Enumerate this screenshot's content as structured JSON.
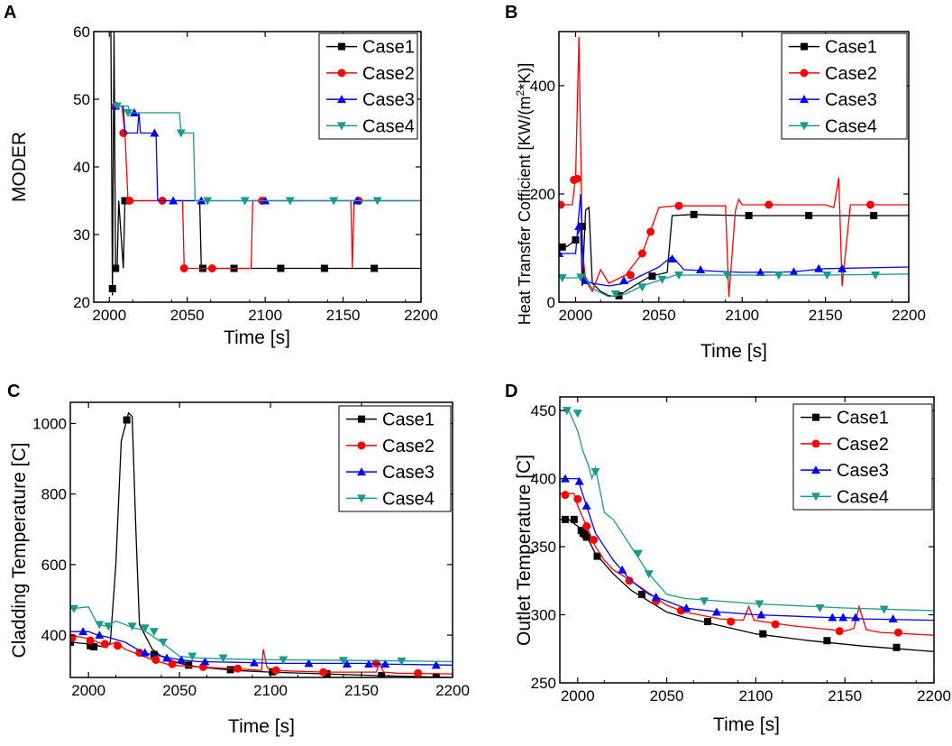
{
  "figure": {
    "panels": [
      "A",
      "B",
      "C",
      "D"
    ]
  },
  "colors": {
    "Case1": "#000000",
    "Case2": "#ff0000",
    "Case3": "#0000ff",
    "Case4": "#1a9a8e"
  },
  "chart_data": [
    {
      "panel": "A",
      "type": "line",
      "title": "",
      "xlabel": "Time [s]",
      "ylabel": "MODER",
      "xlim": [
        1990,
        2200
      ],
      "ylim": [
        20,
        60
      ],
      "xticks": [
        2000,
        2050,
        2100,
        2150,
        2200
      ],
      "yticks": [
        20,
        30,
        40,
        50,
        60
      ],
      "legend_position": "top-right",
      "series": [
        {
          "name": "Case1",
          "marker": "square",
          "x": [
            2001,
            2002,
            2003,
            2004,
            2005,
            2006,
            2009,
            2010,
            2030,
            2058,
            2059,
            2200
          ],
          "y": [
            60,
            21,
            60,
            25,
            25,
            35,
            25,
            35,
            35,
            35,
            25,
            25
          ],
          "markers_x": [
            2002,
            2004,
            2010,
            2060,
            2080,
            2110,
            2138,
            2170
          ],
          "markers_y": [
            22,
            25,
            35,
            25,
            25,
            25,
            25,
            25
          ]
        },
        {
          "name": "Case2",
          "marker": "circle",
          "x": [
            2003,
            2008,
            2010,
            2012,
            2047,
            2048,
            2091,
            2092,
            2155,
            2156,
            2157,
            2200
          ],
          "y": [
            49,
            49,
            45,
            35,
            35,
            25,
            25,
            35,
            35,
            25,
            35,
            35
          ],
          "markers_x": [
            2004,
            2009,
            2013,
            2034,
            2048,
            2066,
            2098,
            2160
          ],
          "markers_y": [
            49,
            45,
            35,
            35,
            25,
            25,
            35,
            35
          ]
        },
        {
          "name": "Case3",
          "marker": "triangle-up",
          "x": [
            2003,
            2009,
            2010,
            2018,
            2019,
            2020,
            2030,
            2031,
            2200
          ],
          "y": [
            49,
            49,
            45,
            45,
            48,
            45,
            45,
            35,
            35
          ],
          "markers_x": [
            2004,
            2016,
            2029,
            2041,
            2059,
            2100,
            2159
          ],
          "markers_y": [
            49,
            48,
            45,
            35,
            35,
            35,
            35
          ]
        },
        {
          "name": "Case4",
          "marker": "triangle-down",
          "x": [
            2003,
            2012,
            2013,
            2045,
            2046,
            2054,
            2055,
            2200
          ],
          "y": [
            49,
            49,
            48,
            48,
            45,
            45,
            35,
            35
          ],
          "markers_x": [
            2005,
            2012,
            2046,
            2063,
            2087,
            2116,
            2144,
            2172
          ],
          "markers_y": [
            49,
            48,
            45,
            35,
            35,
            35,
            35,
            35
          ]
        }
      ]
    },
    {
      "panel": "B",
      "type": "line",
      "title": "",
      "xlabel": "Time [s]",
      "ylabel": "Heat Transfer Cofficient [KW/(m^2*K)]",
      "ylabel_parts": [
        "Heat Transfer Cofficient [KW/(m",
        "2",
        "*K)]"
      ],
      "xlim": [
        1990,
        2200
      ],
      "ylim": [
        0,
        500
      ],
      "xticks": [
        2000,
        2050,
        2100,
        2150,
        2200
      ],
      "yticks": [
        0,
        200,
        400
      ],
      "legend_position": "top-right",
      "series": [
        {
          "name": "Case1",
          "marker": "square",
          "x": [
            1990,
            1995,
            2000,
            2003,
            2004,
            2006,
            2008,
            2010,
            2015,
            2020,
            2025,
            2035,
            2045,
            2055,
            2058,
            2070,
            2100,
            2150,
            2200
          ],
          "y": [
            100,
            103,
            115,
            140,
            30,
            170,
            175,
            35,
            20,
            12,
            10,
            30,
            48,
            55,
            160,
            162,
            160,
            160,
            160
          ],
          "markers_x": [
            1992,
            2000,
            2004,
            2026,
            2046,
            2071,
            2104,
            2140,
            2179
          ],
          "markers_y": [
            102,
            115,
            140,
            12,
            48,
            162,
            160,
            160,
            160
          ]
        },
        {
          "name": "Case2",
          "marker": "circle",
          "x": [
            1990,
            1998,
            2000,
            2002,
            2004,
            2006,
            2010,
            2015,
            2020,
            2030,
            2040,
            2050,
            2060,
            2090,
            2092,
            2096,
            2098,
            2100,
            2150,
            2155,
            2158,
            2160,
            2165,
            2200
          ],
          "y": [
            180,
            180,
            230,
            490,
            100,
            40,
            20,
            60,
            35,
            50,
            90,
            175,
            178,
            178,
            10,
            170,
            190,
            180,
            180,
            175,
            230,
            30,
            180,
            180
          ],
          "markers_x": [
            1991,
            1999,
            2001,
            2033,
            2040,
            2045,
            2062,
            2116,
            2177
          ],
          "markers_y": [
            180,
            226,
            228,
            50,
            90,
            130,
            178,
            180,
            180
          ]
        },
        {
          "name": "Case3",
          "marker": "triangle-up",
          "x": [
            1990,
            2000,
            2003,
            2005,
            2010,
            2020,
            2030,
            2040,
            2050,
            2058,
            2065,
            2100,
            2130,
            2150,
            2200
          ],
          "y": [
            90,
            90,
            200,
            40,
            35,
            30,
            35,
            50,
            65,
            85,
            60,
            55,
            56,
            62,
            65
          ],
          "markers_x": [
            1990,
            2002,
            2006,
            2029,
            2058,
            2075,
            2111,
            2131,
            2146,
            2160
          ],
          "markers_y": [
            90,
            140,
            40,
            40,
            80,
            60,
            55,
            56,
            62,
            62
          ]
        },
        {
          "name": "Case4",
          "marker": "triangle-down",
          "x": [
            1990,
            2000,
            2005,
            2010,
            2020,
            2030,
            2040,
            2050,
            2060,
            2100,
            2150,
            2200
          ],
          "y": [
            45,
            45,
            48,
            25,
            10,
            15,
            30,
            40,
            50,
            50,
            50,
            52
          ],
          "markers_x": [
            1992,
            2003,
            2024,
            2040,
            2052,
            2062,
            2091,
            2122,
            2151,
            2180
          ],
          "markers_y": [
            45,
            46,
            15,
            28,
            42,
            50,
            50,
            50,
            50,
            50
          ]
        }
      ]
    },
    {
      "panel": "C",
      "type": "line",
      "title": "",
      "xlabel": "Time [s]",
      "ylabel": "Cladding Temperature [C]",
      "xlim": [
        1990,
        2200
      ],
      "ylim": [
        280,
        1060
      ],
      "xticks": [
        2000,
        2050,
        2100,
        2150,
        2200
      ],
      "yticks": [
        400,
        600,
        800,
        1000
      ],
      "legend_position": "top-right",
      "series": [
        {
          "name": "Case1",
          "marker": "square",
          "x": [
            1990,
            2000,
            2005,
            2010,
            2012,
            2015,
            2018,
            2022,
            2024,
            2026,
            2028,
            2035,
            2040,
            2050,
            2060,
            2080,
            2100,
            2130,
            2160,
            2200
          ],
          "y": [
            380,
            375,
            370,
            365,
            380,
            600,
            950,
            1030,
            1020,
            700,
            430,
            360,
            340,
            320,
            310,
            300,
            295,
            290,
            285,
            280
          ],
          "markers_x": [
            1990,
            2001,
            2003,
            2021,
            2036,
            2055,
            2078,
            2101,
            2131,
            2161,
            2191
          ],
          "markers_y": [
            380,
            370,
            367,
            1010,
            345,
            315,
            302,
            296,
            290,
            285,
            282
          ]
        },
        {
          "name": "Case2",
          "marker": "circle",
          "x": [
            1990,
            2000,
            2005,
            2010,
            2015,
            2020,
            2025,
            2035,
            2045,
            2060,
            2080,
            2095,
            2096,
            2098,
            2100,
            2130,
            2158,
            2160,
            2162,
            2170,
            2200
          ],
          "y": [
            400,
            390,
            380,
            370,
            380,
            360,
            350,
            330,
            315,
            310,
            305,
            300,
            360,
            310,
            300,
            295,
            295,
            320,
            295,
            292,
            290
          ],
          "markers_x": [
            1991,
            2001,
            2009,
            2016,
            2028,
            2037,
            2046,
            2063,
            2082,
            2103,
            2129,
            2158,
            2181
          ],
          "markers_y": [
            392,
            385,
            375,
            370,
            350,
            330,
            318,
            310,
            305,
            300,
            295,
            320,
            292
          ]
        },
        {
          "name": "Case3",
          "marker": "triangle-up",
          "x": [
            1990,
            2000,
            2005,
            2010,
            2020,
            2030,
            2040,
            2050,
            2060,
            2090,
            2100,
            2140,
            2150,
            2160,
            2200
          ],
          "y": [
            410,
            410,
            400,
            395,
            380,
            350,
            340,
            330,
            325,
            322,
            320,
            320,
            320,
            318,
            315
          ],
          "markers_x": [
            1997,
            2006,
            2031,
            2043,
            2051,
            2064,
            2091,
            2121,
            2142,
            2154,
            2163,
            2191
          ],
          "markers_y": [
            410,
            400,
            350,
            335,
            330,
            325,
            322,
            320,
            318,
            318,
            318,
            315
          ]
        },
        {
          "name": "Case4",
          "marker": "triangle-down",
          "x": [
            1990,
            2000,
            2005,
            2010,
            2015,
            2020,
            2025,
            2030,
            2040,
            2050,
            2060,
            2080,
            2100,
            2150,
            2200
          ],
          "y": [
            475,
            480,
            430,
            425,
            440,
            430,
            420,
            415,
            380,
            340,
            335,
            332,
            330,
            328,
            325
          ],
          "markers_x": [
            1992,
            2006,
            2011,
            2024,
            2031,
            2036,
            2041,
            2057,
            2074,
            2107,
            2140,
            2172
          ],
          "markers_y": [
            475,
            430,
            425,
            425,
            420,
            410,
            380,
            340,
            335,
            330,
            328,
            326
          ]
        }
      ]
    },
    {
      "panel": "D",
      "type": "line",
      "title": "",
      "xlabel": "Time [s]",
      "ylabel": "Outlet Temperature [C]",
      "xlim": [
        1990,
        2200
      ],
      "ylim": [
        250,
        460
      ],
      "xticks": [
        2000,
        2050,
        2100,
        2150,
        2200
      ],
      "yticks": [
        250,
        300,
        350,
        400,
        450
      ],
      "legend_position": "top-right",
      "series": [
        {
          "name": "Case1",
          "marker": "square",
          "x": [
            1990,
            1995,
            2000,
            2003,
            2006,
            2010,
            2020,
            2030,
            2040,
            2050,
            2060,
            2080,
            2100,
            2130,
            2160,
            2200
          ],
          "y": [
            370,
            370,
            365,
            360,
            355,
            345,
            330,
            318,
            310,
            302,
            298,
            292,
            286,
            281,
            277,
            273
          ],
          "markers_x": [
            1993,
            1998,
            2002,
            2003,
            2004,
            2005,
            2011,
            2036,
            2073,
            2104,
            2140,
            2179
          ],
          "markers_y": [
            370,
            370,
            362,
            360,
            359,
            357,
            343,
            315,
            295,
            286,
            281,
            276
          ]
        },
        {
          "name": "Case2",
          "marker": "circle",
          "x": [
            1990,
            1998,
            2000,
            2005,
            2010,
            2015,
            2020,
            2030,
            2040,
            2050,
            2060,
            2080,
            2093,
            2096,
            2099,
            2120,
            2150,
            2155,
            2158,
            2162,
            2170,
            2200
          ],
          "y": [
            389,
            389,
            380,
            365,
            350,
            340,
            333,
            325,
            316,
            307,
            302,
            297,
            296,
            306,
            296,
            292,
            288,
            290,
            306,
            289,
            287,
            285
          ],
          "markers_x": [
            1993,
            2000,
            2005,
            2009,
            2029,
            2044,
            2058,
            2086,
            2111,
            2147,
            2180
          ],
          "markers_y": [
            388,
            385,
            365,
            355,
            325,
            310,
            303,
            295,
            293,
            288,
            287
          ]
        },
        {
          "name": "Case3",
          "marker": "triangle-up",
          "x": [
            1990,
            2000,
            2005,
            2010,
            2020,
            2030,
            2040,
            2050,
            2060,
            2080,
            2100,
            2140,
            2150,
            2160,
            2200
          ],
          "y": [
            400,
            400,
            380,
            360,
            340,
            325,
            315,
            310,
            305,
            302,
            300,
            298,
            298,
            297,
            296
          ],
          "markers_x": [
            1993,
            2001,
            2005,
            2025,
            2044,
            2061,
            2078,
            2103,
            2143,
            2149,
            2156,
            2177
          ],
          "markers_y": [
            400,
            398,
            380,
            333,
            313,
            305,
            302,
            300,
            298,
            298,
            298,
            297
          ]
        },
        {
          "name": "Case4",
          "marker": "triangle-down",
          "x": [
            1990,
            1995,
            2000,
            2003,
            2006,
            2008,
            2010,
            2015,
            2020,
            2030,
            2040,
            2050,
            2060,
            2080,
            2100,
            2150,
            2200
          ],
          "y": [
            450,
            450,
            435,
            420,
            410,
            400,
            408,
            375,
            370,
            350,
            330,
            315,
            312,
            310,
            308,
            305,
            303
          ],
          "markers_x": [
            1994,
            2000,
            2010,
            2034,
            2040,
            2071,
            2102,
            2136,
            2172
          ],
          "markers_y": [
            450,
            448,
            405,
            345,
            330,
            310,
            308,
            305,
            304
          ]
        }
      ]
    }
  ]
}
